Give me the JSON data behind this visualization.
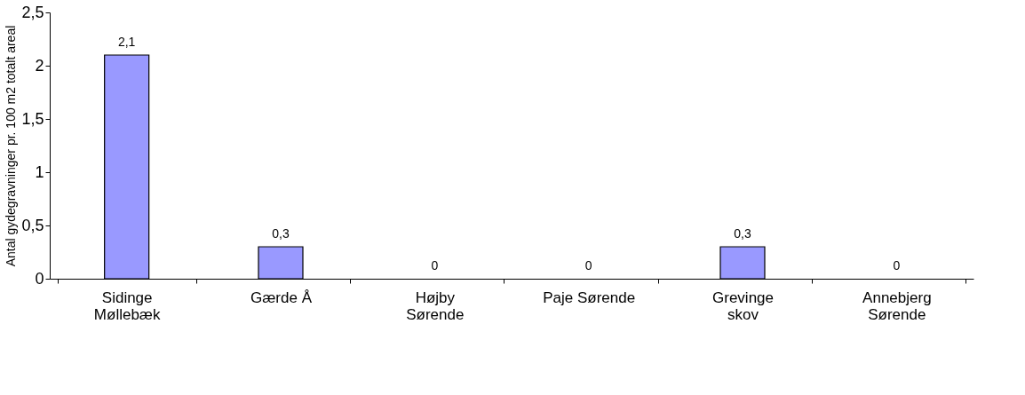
{
  "chart_data": {
    "type": "bar",
    "ylabel": "Antal gydegravninger pr. 100 m2 totalt areal",
    "categories": [
      "Sidinge\nMøllebæk",
      "Gærde Å",
      "Højby\nSørende",
      "Paje Sørende",
      "Grevinge\nskov",
      "Annebjerg\nSørende"
    ],
    "values": [
      2.1,
      0.3,
      0,
      0,
      0.3,
      0
    ],
    "value_labels": [
      "2,1",
      "0,3",
      "0",
      "0",
      "0,3",
      "0"
    ],
    "color": "#9999ff",
    "ylim": [
      0,
      2.5
    ],
    "yticks": [
      0,
      {
        "value": 0.5,
        "label": "0,5"
      },
      1,
      {
        "value": 1.5,
        "label": "1,5"
      },
      2,
      {
        "value": 2.5,
        "label": "2,5"
      }
    ],
    "grid": false
  }
}
